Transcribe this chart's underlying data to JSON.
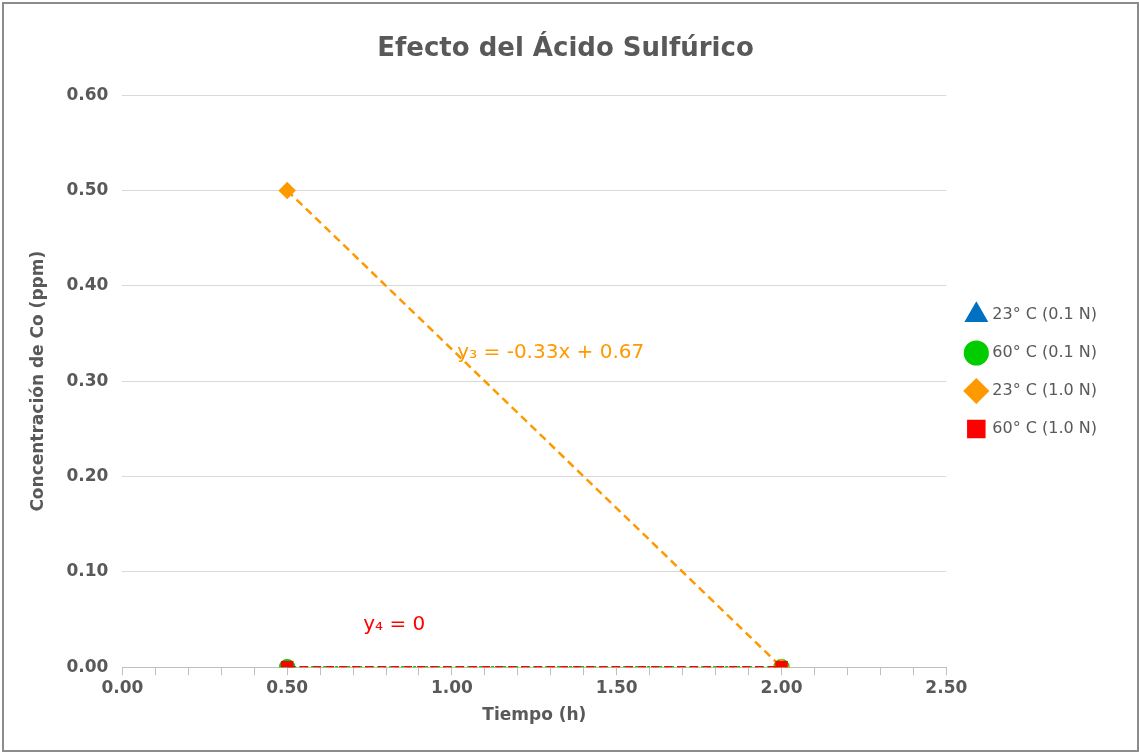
{
  "chart_data": {
    "type": "line",
    "title": "Efecto del Ácido Sulfúrico",
    "xlabel": "Tiempo (h)",
    "ylabel": "Concentración de Co (ppm)",
    "x": [
      0.5,
      2.0
    ],
    "series": [
      {
        "name": "23° C (0.1 N)",
        "color": "#0070c0",
        "values": [
          null,
          null
        ],
        "marker": "triangle",
        "line_style": "dashed"
      },
      {
        "name": "60° C (0.1 N)",
        "color": "#00cc00",
        "values": [
          0,
          0
        ],
        "marker": "circle",
        "line_style": "dotted"
      },
      {
        "name": "23° C (1.0 N)",
        "color": "#ff9900",
        "values": [
          0.5,
          0
        ],
        "marker": "diamond",
        "line_style": "dashed"
      },
      {
        "name": "60° C (1.0 N)",
        "color": "#ff0000",
        "values": [
          0,
          0
        ],
        "marker": "square",
        "line_style": "dashed"
      }
    ],
    "xlim": [
      0,
      2.5
    ],
    "xticks": [
      {
        "value": 0,
        "label": "0.00"
      },
      {
        "value": 0.1,
        "label": null
      },
      {
        "value": 0.2,
        "label": null
      },
      {
        "value": 0.3,
        "label": null
      },
      {
        "value": 0.4,
        "label": null
      },
      {
        "value": 0.5,
        "label": "0.50"
      },
      {
        "value": 0.6,
        "label": null
      },
      {
        "value": 0.7,
        "label": null
      },
      {
        "value": 0.8,
        "label": null
      },
      {
        "value": 0.9,
        "label": null
      },
      {
        "value": 1.0,
        "label": "1.00"
      },
      {
        "value": 1.1,
        "label": null
      },
      {
        "value": 1.2,
        "label": null
      },
      {
        "value": 1.3,
        "label": null
      },
      {
        "value": 1.4,
        "label": null
      },
      {
        "value": 1.5,
        "label": "1.50"
      },
      {
        "value": 1.6,
        "label": null
      },
      {
        "value": 1.7,
        "label": null
      },
      {
        "value": 1.8,
        "label": null
      },
      {
        "value": 1.9,
        "label": null
      },
      {
        "value": 2.0,
        "label": "2.00"
      },
      {
        "value": 2.1,
        "label": null
      },
      {
        "value": 2.2,
        "label": null
      },
      {
        "value": 2.3,
        "label": null
      },
      {
        "value": 2.4,
        "label": null
      },
      {
        "value": 2.5,
        "label": "2.50"
      }
    ],
    "ylim": [
      0,
      0.6
    ],
    "yticks": [
      {
        "value": 0,
        "label": "0.00"
      },
      {
        "value": 0.1,
        "label": "0.10"
      },
      {
        "value": 0.2,
        "label": "0.20"
      },
      {
        "value": 0.3,
        "label": "0.30"
      },
      {
        "value": 0.4,
        "label": "0.40"
      },
      {
        "value": 0.5,
        "label": "0.50"
      },
      {
        "value": 0.6,
        "label": "0.60"
      }
    ],
    "grid": "y",
    "legend": "right",
    "annotations": [
      "y₃ = -0.33x + 0.67",
      "y₄ = 0"
    ]
  }
}
